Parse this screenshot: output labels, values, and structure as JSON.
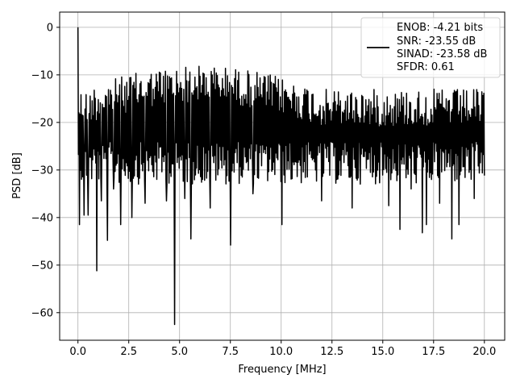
{
  "colors": {
    "line": "#000000",
    "grid": "#b0b0b0",
    "background": "#ffffff"
  },
  "chart_data": {
    "type": "line",
    "xlabel": "Frequency [MHz]",
    "ylabel": "PSD [dB]",
    "xlim": [
      -0.9,
      21.0
    ],
    "ylim": [
      -65.8,
      3.2
    ],
    "grid": true,
    "legend_position": "upper right",
    "x_ticks": [
      0.0,
      2.5,
      5.0,
      7.5,
      10.0,
      12.5,
      15.0,
      17.5,
      20.0
    ],
    "x_tick_labels": [
      "0.0",
      "2.5",
      "5.0",
      "7.5",
      "10.0",
      "12.5",
      "15.0",
      "17.5",
      "20.0"
    ],
    "y_ticks": [
      0,
      -10,
      -20,
      -30,
      -40,
      -50,
      -60
    ],
    "y_tick_labels": [
      "0",
      "−10",
      "−20",
      "−30",
      "−40",
      "−50",
      "−60"
    ],
    "legend_lines": [
      "ENOB: -4.21 bits",
      "SNR: -23.55 dB",
      "SINAD: -23.58 dB",
      "SFDR: 0.61"
    ],
    "series": [
      {
        "x_start": 0.0,
        "x_end": 20.0,
        "points": 800,
        "noise_floor_mean": -20,
        "peak": {
          "x": 0.0,
          "y": 0.0
        },
        "dips": [
          {
            "x": 0.08,
            "y": -41.5
          },
          {
            "x": 0.3,
            "y": -39.5
          },
          {
            "x": 0.5,
            "y": -39.5
          },
          {
            "x": 0.92,
            "y": -51.2
          },
          {
            "x": 1.15,
            "y": -36.5
          },
          {
            "x": 1.45,
            "y": -44.8
          },
          {
            "x": 1.75,
            "y": -34.0
          },
          {
            "x": 2.1,
            "y": -41.5
          },
          {
            "x": 2.65,
            "y": -40.0
          },
          {
            "x": 3.3,
            "y": -37.0
          },
          {
            "x": 4.35,
            "y": -36.5
          },
          {
            "x": 4.75,
            "y": -62.5
          },
          {
            "x": 5.25,
            "y": -36.0
          },
          {
            "x": 5.55,
            "y": -44.5
          },
          {
            "x": 6.5,
            "y": -38.0
          },
          {
            "x": 7.5,
            "y": -45.8
          },
          {
            "x": 8.6,
            "y": -35.0
          },
          {
            "x": 10.05,
            "y": -41.5
          },
          {
            "x": 12.0,
            "y": -36.5
          },
          {
            "x": 13.5,
            "y": -38.0
          },
          {
            "x": 15.3,
            "y": -37.5
          },
          {
            "x": 15.85,
            "y": -42.5
          },
          {
            "x": 16.4,
            "y": -34.0
          },
          {
            "x": 16.95,
            "y": -43.2
          },
          {
            "x": 17.15,
            "y": -41.5
          },
          {
            "x": 17.8,
            "y": -37.0
          },
          {
            "x": 18.4,
            "y": -44.5
          },
          {
            "x": 18.75,
            "y": -41.5
          },
          {
            "x": 19.5,
            "y": -36.0
          }
        ]
      }
    ]
  }
}
